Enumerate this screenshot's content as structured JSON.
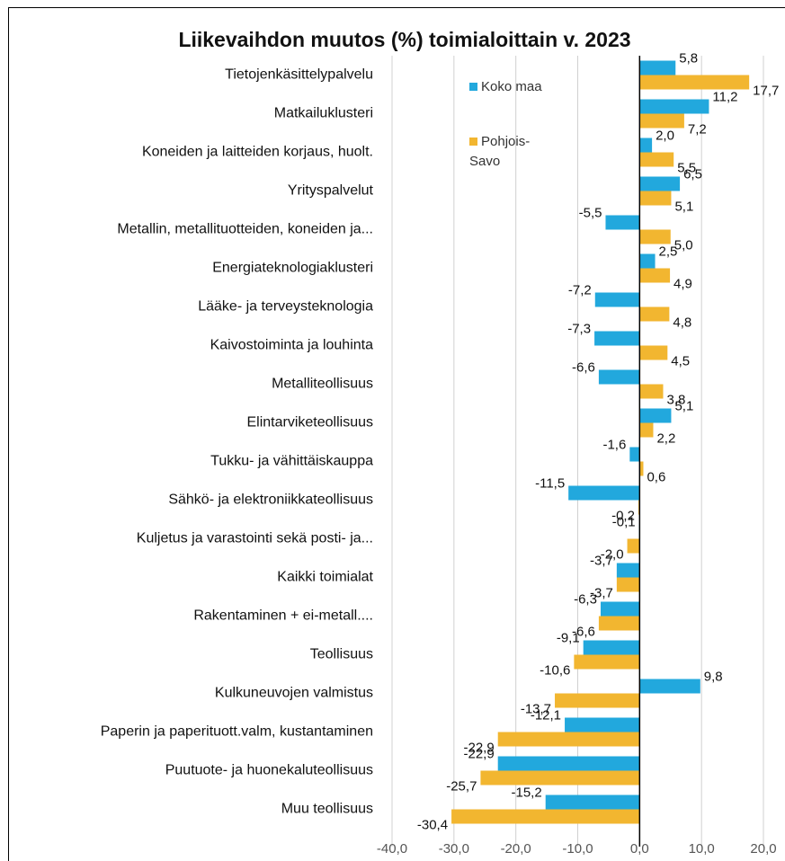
{
  "chart_data": {
    "type": "bar",
    "orientation": "horizontal",
    "title": "Liikevaihdon muutos (%) toimialoittain v. 2023",
    "categories": [
      "Tietojenkäsittelypalvelu",
      "Matkailuklusteri",
      "Koneiden ja laitteiden korjaus, huolt.",
      "Yrityspalvelut",
      "Metallin, metallituotteiden, koneiden ja...",
      "Energiateknologiaklusteri",
      "Lääke- ja terveysteknologia",
      "Kaivostoiminta ja louhinta",
      "Metalliteollisuus",
      "Elintarviketeollisuus",
      "Tukku- ja vähittäiskauppa",
      "Sähkö- ja elektroniikkateollisuus",
      "Kuljetus ja varastointi sekä posti- ja...",
      "Kaikki toimialat",
      "Rakentaminen + ei-metall....",
      "Teollisuus",
      "Kulkuneuvojen valmistus",
      "Paperin ja paperituott.valm, kustantaminen",
      "Puutuote- ja huonekaluteollisuus",
      "Muu teollisuus"
    ],
    "series": [
      {
        "name": "Koko maa",
        "color": "#22a8dd",
        "values": [
          5.8,
          11.2,
          2.0,
          6.5,
          -5.5,
          2.5,
          -7.2,
          -7.3,
          -6.6,
          5.1,
          -1.6,
          -11.5,
          -0.1,
          -3.7,
          -6.3,
          -9.1,
          9.8,
          -12.1,
          -22.9,
          -15.2
        ],
        "value_labels": [
          "5,8",
          "11,2",
          "2,0",
          "6,5",
          "-5,5",
          "2,5",
          "-7,2",
          "-7,3",
          "-6,6",
          "5,1",
          "-1,6",
          "-11,5",
          "-0,1",
          "-3,7",
          "-6,3",
          "-9,1",
          "9,8",
          "-12,1",
          "-22,9",
          "-15,2"
        ]
      },
      {
        "name": "Pohjois-Savo",
        "color": "#f2b630",
        "values": [
          17.7,
          7.2,
          5.5,
          5.1,
          5.0,
          4.9,
          4.8,
          4.5,
          3.8,
          2.2,
          0.6,
          -0.2,
          -2.0,
          -3.7,
          -6.6,
          -10.6,
          -13.7,
          -22.9,
          -25.7,
          -30.4
        ],
        "value_labels": [
          "17,7",
          "7,2",
          "5,5",
          "5,1",
          "5,0",
          "4,9",
          "4,8",
          "4,5",
          "3,8",
          "2,2",
          "0,6",
          "-0,2",
          "-2,0",
          "-3,7",
          "-6,6",
          "-10,6",
          "-13,7",
          "-22,9",
          "-25,7",
          "-30,4"
        ]
      }
    ],
    "xlim": [
      -40,
      20
    ],
    "xticks": [
      {
        "value": -40,
        "label": "-40,0"
      },
      {
        "value": -30,
        "label": "-30,0"
      },
      {
        "value": -20,
        "label": "-20,0"
      },
      {
        "value": -10,
        "label": "-10,0"
      },
      {
        "value": 0,
        "label": "0,0"
      },
      {
        "value": 10,
        "label": "10,0"
      },
      {
        "value": 20,
        "label": "20,0"
      }
    ],
    "grid": true
  }
}
